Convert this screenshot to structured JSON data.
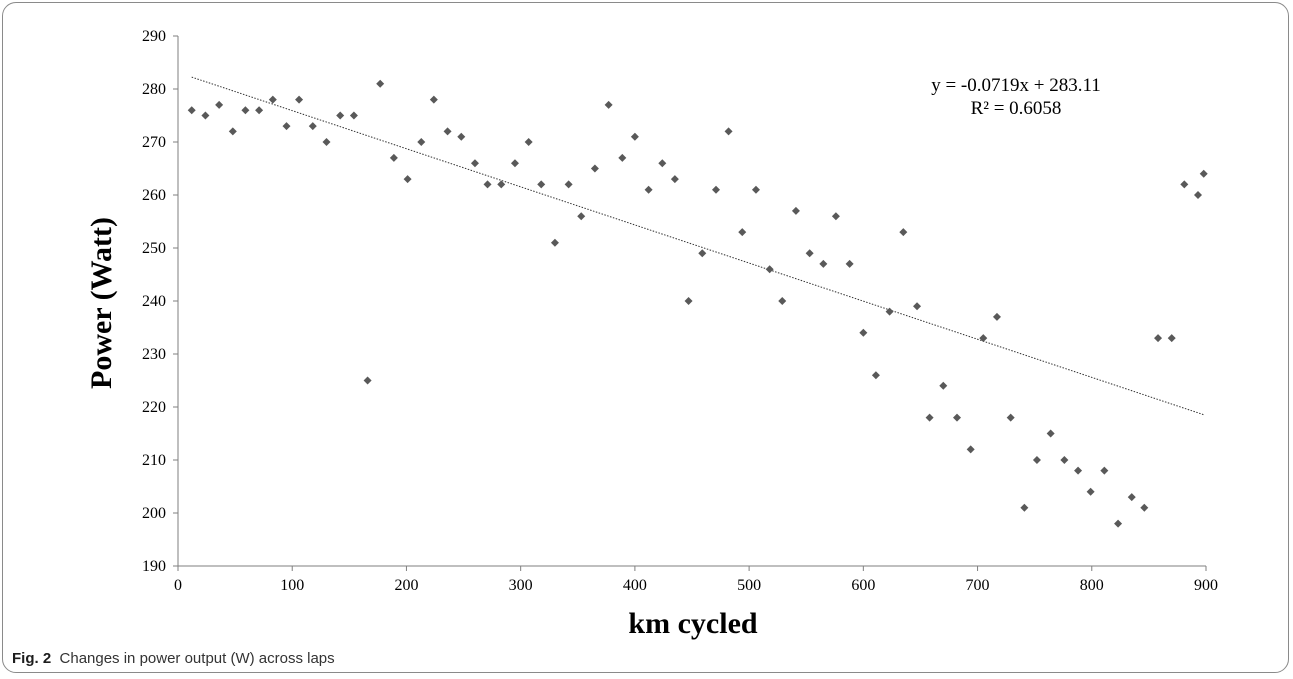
{
  "caption": {
    "label": "Fig. 2",
    "text": "Changes in power output (W) across laps"
  },
  "chart_data": {
    "type": "scatter",
    "xlabel": "km cycled",
    "ylabel": "Power (Watt)",
    "xlim": [
      0,
      900
    ],
    "ylim": [
      190,
      290
    ],
    "xticks": [
      0,
      100,
      200,
      300,
      400,
      500,
      600,
      700,
      800,
      900
    ],
    "yticks": [
      190,
      200,
      210,
      220,
      230,
      240,
      250,
      260,
      270,
      280,
      290
    ],
    "marker_color": "#595959",
    "grid": false,
    "trendline": {
      "slope": -0.0719,
      "intercept": 283.11,
      "x_range": [
        12,
        898
      ],
      "equation": "y = -0.0719x + 283.11",
      "r_squared": "R² = 0.6058"
    },
    "points": [
      [
        12,
        276
      ],
      [
        24,
        275
      ],
      [
        36,
        277
      ],
      [
        48,
        272
      ],
      [
        59,
        276
      ],
      [
        71,
        276
      ],
      [
        83,
        278
      ],
      [
        95,
        273
      ],
      [
        106,
        278
      ],
      [
        118,
        273
      ],
      [
        130,
        270
      ],
      [
        142,
        275
      ],
      [
        154,
        275
      ],
      [
        166,
        225
      ],
      [
        177,
        281
      ],
      [
        189,
        267
      ],
      [
        201,
        263
      ],
      [
        213,
        270
      ],
      [
        224,
        278
      ],
      [
        236,
        272
      ],
      [
        248,
        271
      ],
      [
        260,
        266
      ],
      [
        271,
        262
      ],
      [
        283,
        262
      ],
      [
        295,
        266
      ],
      [
        307,
        270
      ],
      [
        318,
        262
      ],
      [
        330,
        251
      ],
      [
        342,
        262
      ],
      [
        353,
        256
      ],
      [
        365,
        265
      ],
      [
        377,
        277
      ],
      [
        389,
        267
      ],
      [
        400,
        271
      ],
      [
        412,
        261
      ],
      [
        424,
        266
      ],
      [
        435,
        263
      ],
      [
        447,
        240
      ],
      [
        459,
        249
      ],
      [
        471,
        261
      ],
      [
        482,
        272
      ],
      [
        494,
        253
      ],
      [
        506,
        261
      ],
      [
        518,
        246
      ],
      [
        529,
        240
      ],
      [
        541,
        257
      ],
      [
        553,
        249
      ],
      [
        565,
        247
      ],
      [
        576,
        256
      ],
      [
        588,
        247
      ],
      [
        600,
        234
      ],
      [
        611,
        226
      ],
      [
        623,
        238
      ],
      [
        635,
        253
      ],
      [
        647,
        239
      ],
      [
        658,
        218
      ],
      [
        670,
        224
      ],
      [
        682,
        218
      ],
      [
        694,
        212
      ],
      [
        705,
        233
      ],
      [
        717,
        237
      ],
      [
        729,
        218
      ],
      [
        741,
        201
      ],
      [
        752,
        210
      ],
      [
        764,
        215
      ],
      [
        776,
        210
      ],
      [
        788,
        208
      ],
      [
        799,
        204
      ],
      [
        811,
        208
      ],
      [
        823,
        198
      ],
      [
        835,
        203
      ],
      [
        846,
        201
      ],
      [
        858,
        233
      ],
      [
        870,
        233
      ],
      [
        881,
        262
      ],
      [
        893,
        260
      ],
      [
        898,
        264
      ]
    ]
  }
}
